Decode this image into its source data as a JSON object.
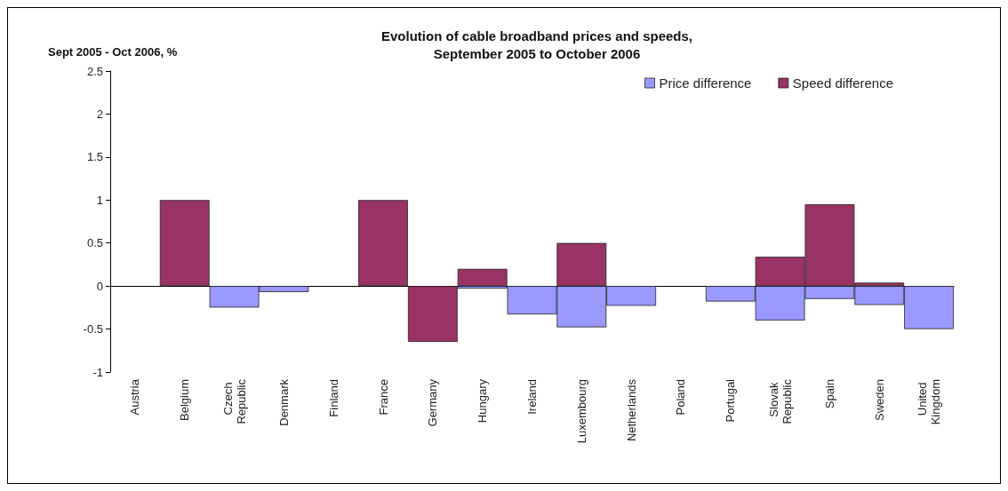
{
  "chart_data": {
    "type": "bar",
    "title": "Evolution of cable broadband prices and speeds,\nSeptember 2005 to October 2006",
    "ylabel": "Sept 2005 - Oct 2006, %",
    "categories": [
      "Austria",
      "Belgium",
      "Czech Republic",
      "Denmark",
      "Finland",
      "France",
      "Germany",
      "Hungary",
      "Ireland",
      "Luxembourg",
      "Netherlands",
      "Poland",
      "Portugal",
      "Slovak Republic",
      "Spain",
      "Sweden",
      "United Kingdom"
    ],
    "series": [
      {
        "name": "Price difference",
        "color": "#9999ff",
        "values": [
          null,
          null,
          -0.25,
          -0.07,
          null,
          null,
          null,
          -0.03,
          -0.33,
          -0.48,
          -0.23,
          null,
          -0.18,
          -0.4,
          -0.15,
          -0.22,
          -0.5
        ]
      },
      {
        "name": "Speed difference",
        "color": "#993366",
        "values": [
          null,
          1.0,
          null,
          null,
          null,
          1.0,
          -0.65,
          0.2,
          null,
          0.5,
          null,
          null,
          null,
          0.34,
          0.95,
          0.04,
          null
        ]
      }
    ],
    "ylim": [
      -1,
      2.5
    ],
    "yticks": [
      -1,
      -0.5,
      0,
      0.5,
      1,
      1.5,
      2,
      2.5
    ],
    "legend": "top right"
  }
}
